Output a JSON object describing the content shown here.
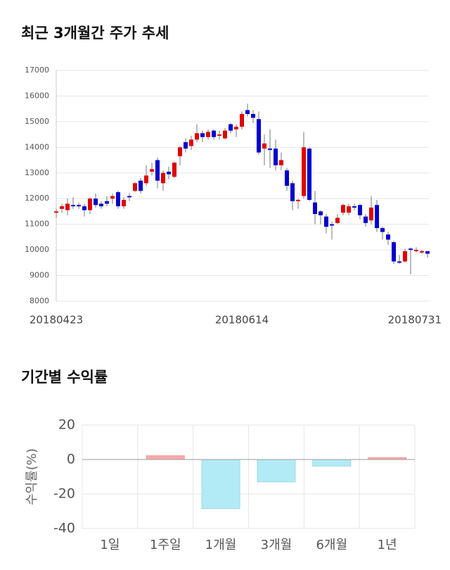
{
  "chart_data": [
    {
      "type": "candlestick",
      "title": "최근 3개월간 주가 추세",
      "categories": [
        "20180423",
        null,
        null,
        null,
        null,
        null,
        null,
        null,
        null,
        null,
        null,
        null,
        null,
        null,
        null,
        null,
        null,
        null,
        null,
        null,
        null,
        null,
        null,
        null,
        null,
        null,
        null,
        null,
        null,
        null,
        null,
        null,
        null,
        "20180614",
        null,
        null,
        null,
        null,
        null,
        null,
        null,
        null,
        null,
        null,
        null,
        null,
        null,
        null,
        null,
        null,
        null,
        null,
        null,
        null,
        null,
        null,
        null,
        null,
        null,
        null,
        null,
        null,
        null,
        null,
        null,
        null,
        "20180731"
      ],
      "open": [
        11450,
        11600,
        11550,
        11750,
        11750,
        11700,
        11550,
        12000,
        11800,
        11900,
        12000,
        12250,
        11700,
        12100,
        12300,
        12700,
        12600,
        13050,
        13500,
        12600,
        13050,
        12850,
        13650,
        14200,
        14050,
        14300,
        14550,
        14400,
        14650,
        14450,
        14350,
        14900,
        14700,
        14800,
        15450,
        15300,
        15100,
        13950,
        13950,
        13950,
        13300,
        13100,
        12600,
        11900,
        12100,
        13950,
        11850,
        11500,
        11300,
        11000,
        11050,
        11450,
        11450,
        11700,
        11750,
        11300,
        11150,
        11750,
        10850,
        10600,
        10300,
        9550,
        9550,
        10050,
        9950,
        9900,
        9950
      ],
      "high": [
        11600,
        11800,
        12000,
        12050,
        11850,
        11800,
        12050,
        12200,
        11900,
        12100,
        12200,
        12300,
        12050,
        12200,
        12650,
        12800,
        13300,
        13400,
        13600,
        13100,
        13250,
        13450,
        14050,
        14350,
        14450,
        14900,
        14650,
        14700,
        14700,
        14650,
        14750,
        14950,
        14900,
        15400,
        15700,
        15450,
        15400,
        14500,
        14700,
        14300,
        13800,
        13200,
        12700,
        12000,
        14600,
        14000,
        12300,
        11550,
        11400,
        11100,
        11400,
        11800,
        11800,
        11800,
        11800,
        11400,
        12100,
        11950,
        10900,
        10700,
        10350,
        9800,
        10050,
        10100,
        10100,
        10000,
        9950
      ],
      "low": [
        11250,
        11450,
        11350,
        11600,
        11600,
        11300,
        11400,
        11650,
        11600,
        11700,
        11800,
        11600,
        11600,
        11900,
        12250,
        12200,
        12500,
        12900,
        12400,
        12300,
        12750,
        12800,
        13300,
        13800,
        13900,
        14200,
        14200,
        14300,
        14300,
        14300,
        14300,
        14550,
        14400,
        14700,
        15200,
        14950,
        13700,
        13300,
        13200,
        13100,
        13100,
        12300,
        11550,
        11600,
        12000,
        11900,
        11000,
        11000,
        10650,
        10400,
        11000,
        11350,
        11350,
        11550,
        11200,
        10900,
        11000,
        10700,
        10400,
        10200,
        9450,
        9450,
        9500,
        9050,
        9900,
        9850,
        9700
      ],
      "close": [
        11500,
        11700,
        11800,
        11700,
        11700,
        11550,
        12000,
        11750,
        11700,
        11800,
        12100,
        11700,
        11950,
        12050,
        12600,
        12300,
        12900,
        13150,
        12700,
        13000,
        12950,
        13400,
        14000,
        13950,
        14300,
        14550,
        14400,
        14600,
        14400,
        14500,
        14650,
        14650,
        14800,
        15300,
        15300,
        15150,
        13800,
        14150,
        13900,
        13300,
        13500,
        12500,
        11900,
        11950,
        14000,
        11950,
        11400,
        11350,
        10900,
        10950,
        11250,
        11750,
        11700,
        11650,
        11350,
        11050,
        11650,
        10850,
        10700,
        10400,
        9550,
        9500,
        9950,
        10000,
        10000,
        9950,
        9850
      ],
      "up_color": "#e00000",
      "down_color": "#0000cc",
      "ylim": [
        8000,
        17000
      ],
      "yticks": [
        8000,
        9000,
        10000,
        11000,
        12000,
        13000,
        14000,
        15000,
        16000,
        17000
      ],
      "grid": true
    },
    {
      "type": "bar",
      "title": "기간별 수익률",
      "y_label": "수익률(%)",
      "categories": [
        "1일",
        "1주일",
        "1개월",
        "3개월",
        "6개월",
        "1년"
      ],
      "values": [
        0,
        2.2,
        -28.5,
        -13,
        -3.8,
        1.1
      ],
      "positive_color": "#ffa9a9",
      "negative_color": "#b2ebf5",
      "ylim": [
        -40,
        20
      ],
      "yticks": [
        20,
        0,
        -20,
        -40
      ],
      "grid": true
    }
  ]
}
